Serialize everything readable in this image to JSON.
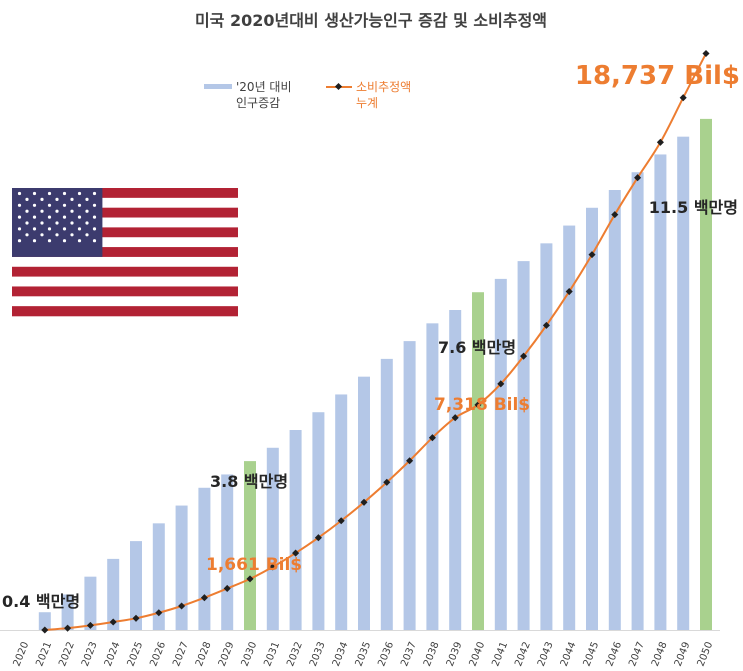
{
  "chart_data": {
    "type": "bar",
    "title": "미국 2020년대비 생산가능인구 증감 및 소비추정액",
    "categories": [
      "2020",
      "2021",
      "2022",
      "2023",
      "2024",
      "2025",
      "2026",
      "2027",
      "2028",
      "2029",
      "2030",
      "2031",
      "2032",
      "2033",
      "2034",
      "2035",
      "2036",
      "2037",
      "2038",
      "2039",
      "2040",
      "2041",
      "2042",
      "2043",
      "2044",
      "2045",
      "2046",
      "2047",
      "2048",
      "2049",
      "2050"
    ],
    "series": [
      {
        "name": "'20년 대비 인구증감",
        "kind": "bar",
        "axis": "left",
        "values": [
          0,
          0.4,
          0.8,
          1.2,
          1.6,
          2.0,
          2.4,
          2.8,
          3.2,
          3.5,
          3.8,
          4.1,
          4.5,
          4.9,
          5.3,
          5.7,
          6.1,
          6.5,
          6.9,
          7.2,
          7.6,
          7.9,
          8.3,
          8.7,
          9.1,
          9.5,
          9.9,
          10.3,
          10.7,
          11.1,
          11.5
        ],
        "color": "#B4C7E7",
        "highlight_color": "#A9D18E",
        "highlight_categories": [
          "2030",
          "2040",
          "2050"
        ]
      },
      {
        "name": "소비추정액 누계",
        "kind": "line",
        "axis": "right",
        "values": [
          null,
          0,
          60,
          150,
          260,
          380,
          560,
          780,
          1050,
          1350,
          1661,
          2050,
          2500,
          3000,
          3550,
          4150,
          4800,
          5500,
          6250,
          6900,
          7318,
          8000,
          8900,
          9900,
          11000,
          12200,
          13500,
          14700,
          15850,
          17300,
          18737
        ],
        "color": "#ED7D31"
      }
    ],
    "yleft_lim": [
      0,
      13.5
    ],
    "yright_lim": [
      0,
      19500
    ],
    "legend": {
      "position": "top-center"
    },
    "annotations": {
      "population": [
        {
          "category": "2021",
          "text": "0.4 백만명"
        },
        {
          "category": "2030",
          "text": "3.8 백만명"
        },
        {
          "category": "2040",
          "text": "7.6 백만명"
        },
        {
          "category": "2050",
          "text": "11.5 백만명"
        }
      ],
      "spending": [
        {
          "category": "2030",
          "text": "1,661 Bil$"
        },
        {
          "category": "2040",
          "text": "7,318 Bil$"
        },
        {
          "category": "2050",
          "text": "18,737 Bil$"
        }
      ]
    },
    "legend_labels": {
      "bar_line1": "'20년 대비",
      "bar_line2": "인구증감",
      "line_line1": "소비추정액",
      "line_line2": "누계"
    }
  },
  "flag": {
    "name": "us-flag"
  }
}
